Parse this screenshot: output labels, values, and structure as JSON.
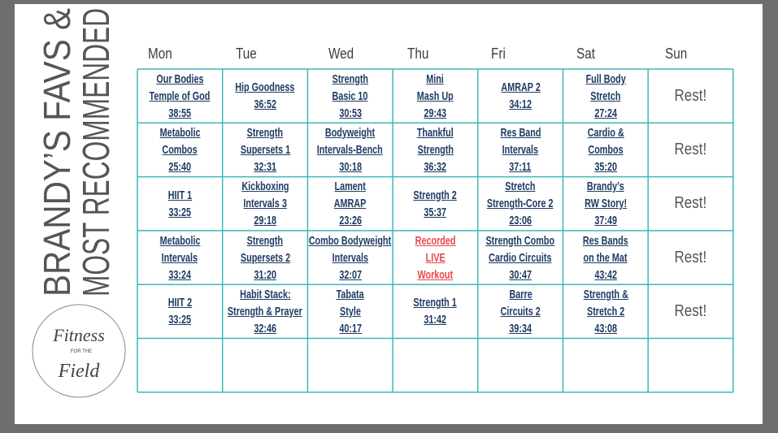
{
  "side_title": {
    "line1": "BRANDY’S FAVS &",
    "line2": "MOST RECOMMENDED"
  },
  "logo": {
    "top": "Fitness",
    "middle": "FOR THE",
    "bottom": "Field"
  },
  "table": {
    "columns": [
      "Mon",
      "Tue",
      "Wed",
      "Thu",
      "Fri",
      "Sat",
      "Sun"
    ],
    "rows": [
      [
        {
          "lines": [
            "Our Bodies",
            "Temple of God",
            "38:55"
          ]
        },
        {
          "lines": [
            "Hip Goodness",
            "36:52"
          ]
        },
        {
          "lines": [
            "Strength",
            "Basic 10",
            "30:53"
          ]
        },
        {
          "lines": [
            "Mini",
            "Mash Up",
            "29:43"
          ]
        },
        {
          "lines": [
            "AMRAP 2",
            "34:12"
          ]
        },
        {
          "lines": [
            "Full Body",
            "Stretch",
            "27:24"
          ]
        },
        {
          "lines": [
            "Rest!"
          ]
        }
      ],
      [
        {
          "lines": [
            "Metabolic",
            "Combos",
            "25:40"
          ]
        },
        {
          "lines": [
            "Strength",
            "Supersets 1",
            "32:31"
          ]
        },
        {
          "lines": [
            "Bodyweight",
            "Intervals-Bench",
            "30:18"
          ]
        },
        {
          "lines": [
            "Thankful",
            "Strength",
            "36:32"
          ]
        },
        {
          "lines": [
            "Res Band",
            "Intervals",
            "37:11"
          ]
        },
        {
          "lines": [
            "Cardio &",
            "Combos",
            "35:20"
          ]
        },
        {
          "lines": [
            "Rest!"
          ]
        }
      ],
      [
        {
          "lines": [
            "HIIT 1",
            "33:25"
          ]
        },
        {
          "lines": [
            "Kickboxing",
            "Intervals 3",
            "29:18"
          ]
        },
        {
          "lines": [
            "Lament",
            "AMRAP",
            "23:26"
          ]
        },
        {
          "lines": [
            "Strength 2",
            "35:37"
          ]
        },
        {
          "lines": [
            "Stretch",
            "Strength-Core 2",
            "23:06"
          ]
        },
        {
          "lines": [
            "Brandy’s",
            "RW Story!",
            "37:49"
          ]
        },
        {
          "lines": [
            "Rest!"
          ]
        }
      ],
      [
        {
          "lines": [
            "Metabolic",
            "Intervals",
            "33:24"
          ]
        },
        {
          "lines": [
            "Strength",
            "Supersets 2",
            "31:20"
          ]
        },
        {
          "lines": [
            "Combo Bodyweight",
            "Intervals",
            "32:07"
          ]
        },
        {
          "lines": [
            "Recorded",
            "LIVE",
            "Workout"
          ],
          "color": "#e8474c"
        },
        {
          "lines": [
            "Strength Combo",
            "Cardio Circuits",
            "30:47"
          ]
        },
        {
          "lines": [
            "Res Bands",
            "on the Mat",
            "43:42"
          ]
        },
        {
          "lines": [
            "Rest!"
          ]
        }
      ],
      [
        {
          "lines": [
            "HIIT 2",
            "33:25"
          ]
        },
        {
          "lines": [
            "Habit Stack:",
            "Strength & Prayer",
            "32:46"
          ]
        },
        {
          "lines": [
            "Tabata",
            "Style",
            "40:17"
          ]
        },
        {
          "lines": [
            "Strength 1",
            "31:42"
          ]
        },
        {
          "lines": [
            "Barre",
            "Circuits 2",
            "39:34"
          ]
        },
        {
          "lines": [
            "Strength &",
            "Stretch 2",
            "43:08"
          ]
        },
        {
          "lines": [
            "Rest!"
          ]
        }
      ]
    ]
  }
}
